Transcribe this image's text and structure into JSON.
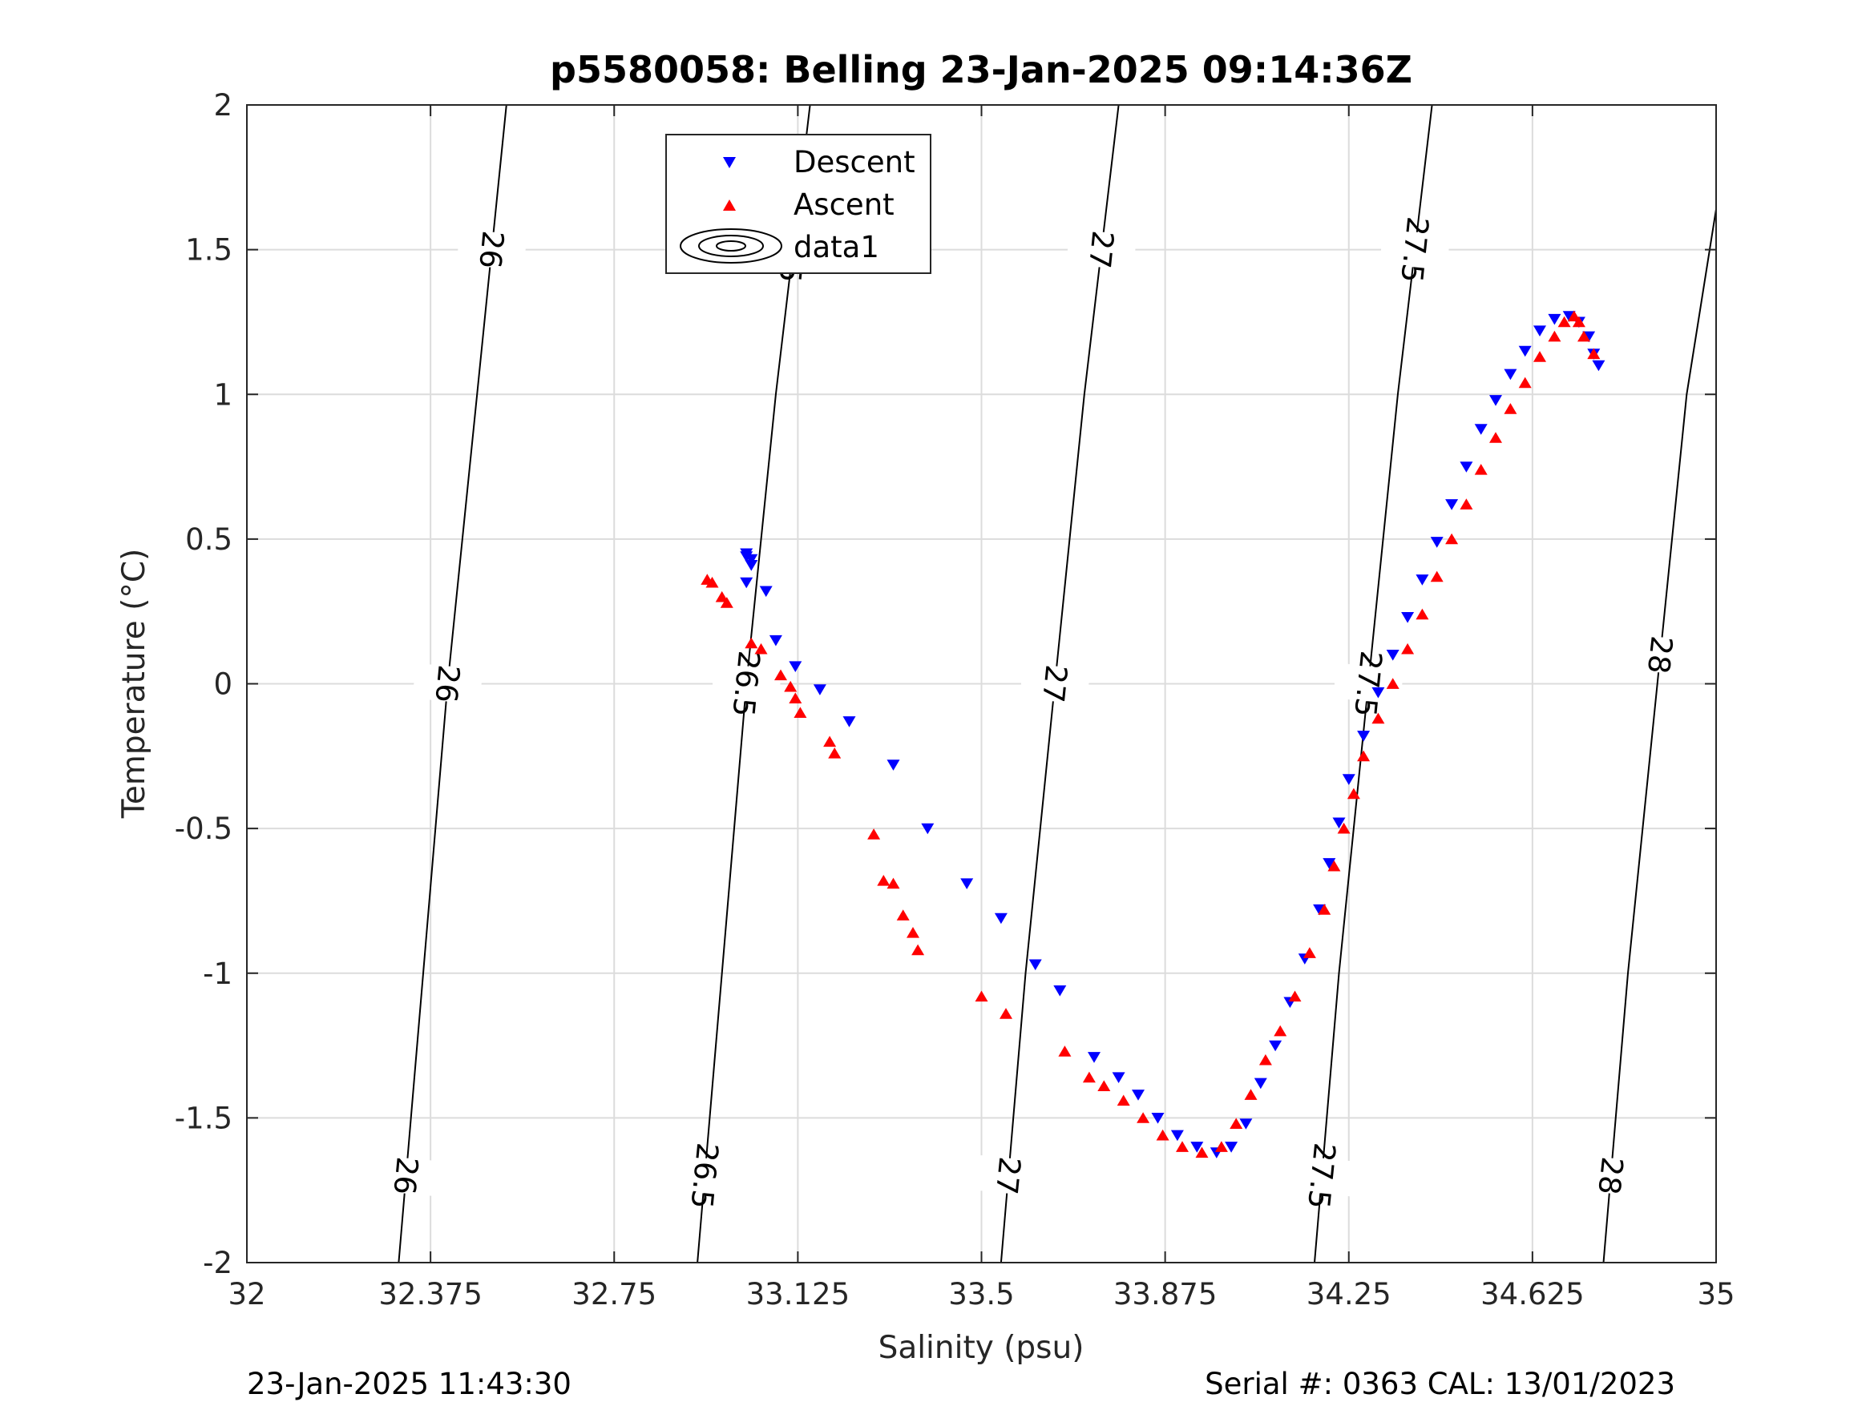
{
  "chart_data": {
    "type": "scatter",
    "title": "p5580058: Belling 23-Jan-2025 09:14:36Z",
    "xlabel": "Salinity (psu)",
    "ylabel": "Temperature (°C)",
    "xlim": [
      32,
      35
    ],
    "ylim": [
      -2,
      2
    ],
    "x_ticks": [
      "32",
      "32.375",
      "32.75",
      "33.125",
      "33.5",
      "33.875",
      "34.25",
      "34.625",
      "35"
    ],
    "y_ticks": [
      "-2",
      "-1.5",
      "-1",
      "-0.5",
      "0",
      "0.5",
      "1",
      "1.5",
      "2"
    ],
    "grid": true,
    "legend": {
      "placement": "top-center",
      "entries": [
        "Descent",
        "Ascent",
        "data1"
      ]
    },
    "footer_left": "23-Jan-2025 11:43:30",
    "footer_right": "Serial #: 0363  CAL: 13/01/2023",
    "colors": {
      "descent": "#0000ff",
      "ascent": "#ff0000",
      "contour": "#000000",
      "grid": "#dcdcdc"
    },
    "contours": [
      {
        "label": "26",
        "points": [
          [
            32.31,
            -2.0
          ],
          [
            32.36,
            -1.0
          ],
          [
            32.41,
            0.0
          ],
          [
            32.47,
            1.0
          ],
          [
            32.53,
            2.0
          ]
        ]
      },
      {
        "label": "26.5",
        "points": [
          [
            32.92,
            -2.0
          ],
          [
            32.97,
            -1.0
          ],
          [
            33.02,
            0.0
          ],
          [
            33.08,
            1.0
          ],
          [
            33.15,
            2.0
          ]
        ]
      },
      {
        "label": "27",
        "points": [
          [
            33.54,
            -2.0
          ],
          [
            33.59,
            -1.0
          ],
          [
            33.65,
            0.0
          ],
          [
            33.71,
            1.0
          ],
          [
            33.78,
            2.0
          ]
        ]
      },
      {
        "label": "27.5",
        "points": [
          [
            34.18,
            -2.0
          ],
          [
            34.23,
            -1.0
          ],
          [
            34.29,
            0.0
          ],
          [
            34.35,
            1.0
          ],
          [
            34.42,
            2.0
          ]
        ]
      },
      {
        "label": "28",
        "points": [
          [
            34.77,
            -2.0
          ],
          [
            34.82,
            -1.0
          ],
          [
            34.88,
            0.0
          ],
          [
            34.94,
            1.0
          ],
          [
            35.0,
            1.64
          ]
        ]
      }
    ],
    "series": [
      {
        "name": "Descent",
        "marker": "triangle-down",
        "x": [
          33.02,
          33.02,
          33.03,
          33.03,
          33.02,
          33.06,
          33.08,
          33.12,
          33.17,
          33.23,
          33.32,
          33.39,
          33.47,
          33.54,
          33.61,
          33.66,
          33.73,
          33.78,
          33.82,
          33.86,
          33.9,
          33.94,
          33.98,
          34.01,
          34.04,
          34.07,
          34.1,
          34.13,
          34.16,
          34.19,
          34.21,
          34.23,
          34.25,
          34.28,
          34.31,
          34.34,
          34.37,
          34.4,
          34.43,
          34.46,
          34.49,
          34.52,
          34.55,
          34.58,
          34.61,
          34.64,
          34.67,
          34.7,
          34.72,
          34.74,
          34.75,
          34.76
        ],
        "y": [
          0.45,
          0.44,
          0.43,
          0.41,
          0.35,
          0.32,
          0.15,
          0.06,
          -0.02,
          -0.13,
          -0.28,
          -0.5,
          -0.69,
          -0.81,
          -0.97,
          -1.06,
          -1.29,
          -1.36,
          -1.42,
          -1.5,
          -1.56,
          -1.6,
          -1.62,
          -1.6,
          -1.52,
          -1.38,
          -1.25,
          -1.1,
          -0.95,
          -0.78,
          -0.62,
          -0.48,
          -0.33,
          -0.18,
          -0.03,
          0.1,
          0.23,
          0.36,
          0.49,
          0.62,
          0.75,
          0.88,
          0.98,
          1.07,
          1.15,
          1.22,
          1.26,
          1.27,
          1.25,
          1.2,
          1.14,
          1.1
        ]
      },
      {
        "name": "Ascent",
        "marker": "triangle-up",
        "x": [
          32.94,
          32.95,
          32.97,
          32.98,
          33.03,
          33.05,
          33.09,
          33.11,
          33.12,
          33.13,
          33.19,
          33.2,
          33.28,
          33.3,
          33.32,
          33.34,
          33.36,
          33.37,
          33.5,
          33.55,
          33.67,
          33.72,
          33.75,
          33.79,
          33.83,
          33.87,
          33.91,
          33.95,
          33.99,
          34.02,
          34.05,
          34.08,
          34.11,
          34.14,
          34.17,
          34.2,
          34.22,
          34.24,
          34.26,
          34.28,
          34.31,
          34.34,
          34.37,
          34.4,
          34.43,
          34.46,
          34.49,
          34.52,
          34.55,
          34.58,
          34.61,
          34.64,
          34.67,
          34.69,
          34.71,
          34.72,
          34.73,
          34.75
        ],
        "y": [
          0.36,
          0.35,
          0.3,
          0.28,
          0.14,
          0.12,
          0.03,
          -0.01,
          -0.05,
          -0.1,
          -0.2,
          -0.24,
          -0.52,
          -0.68,
          -0.69,
          -0.8,
          -0.86,
          -0.92,
          -1.08,
          -1.14,
          -1.27,
          -1.36,
          -1.39,
          -1.44,
          -1.5,
          -1.56,
          -1.6,
          -1.62,
          -1.6,
          -1.52,
          -1.42,
          -1.3,
          -1.2,
          -1.08,
          -0.93,
          -0.78,
          -0.63,
          -0.5,
          -0.38,
          -0.25,
          -0.12,
          0.0,
          0.12,
          0.24,
          0.37,
          0.5,
          0.62,
          0.74,
          0.85,
          0.95,
          1.04,
          1.13,
          1.2,
          1.25,
          1.27,
          1.25,
          1.2,
          1.14
        ]
      }
    ]
  }
}
